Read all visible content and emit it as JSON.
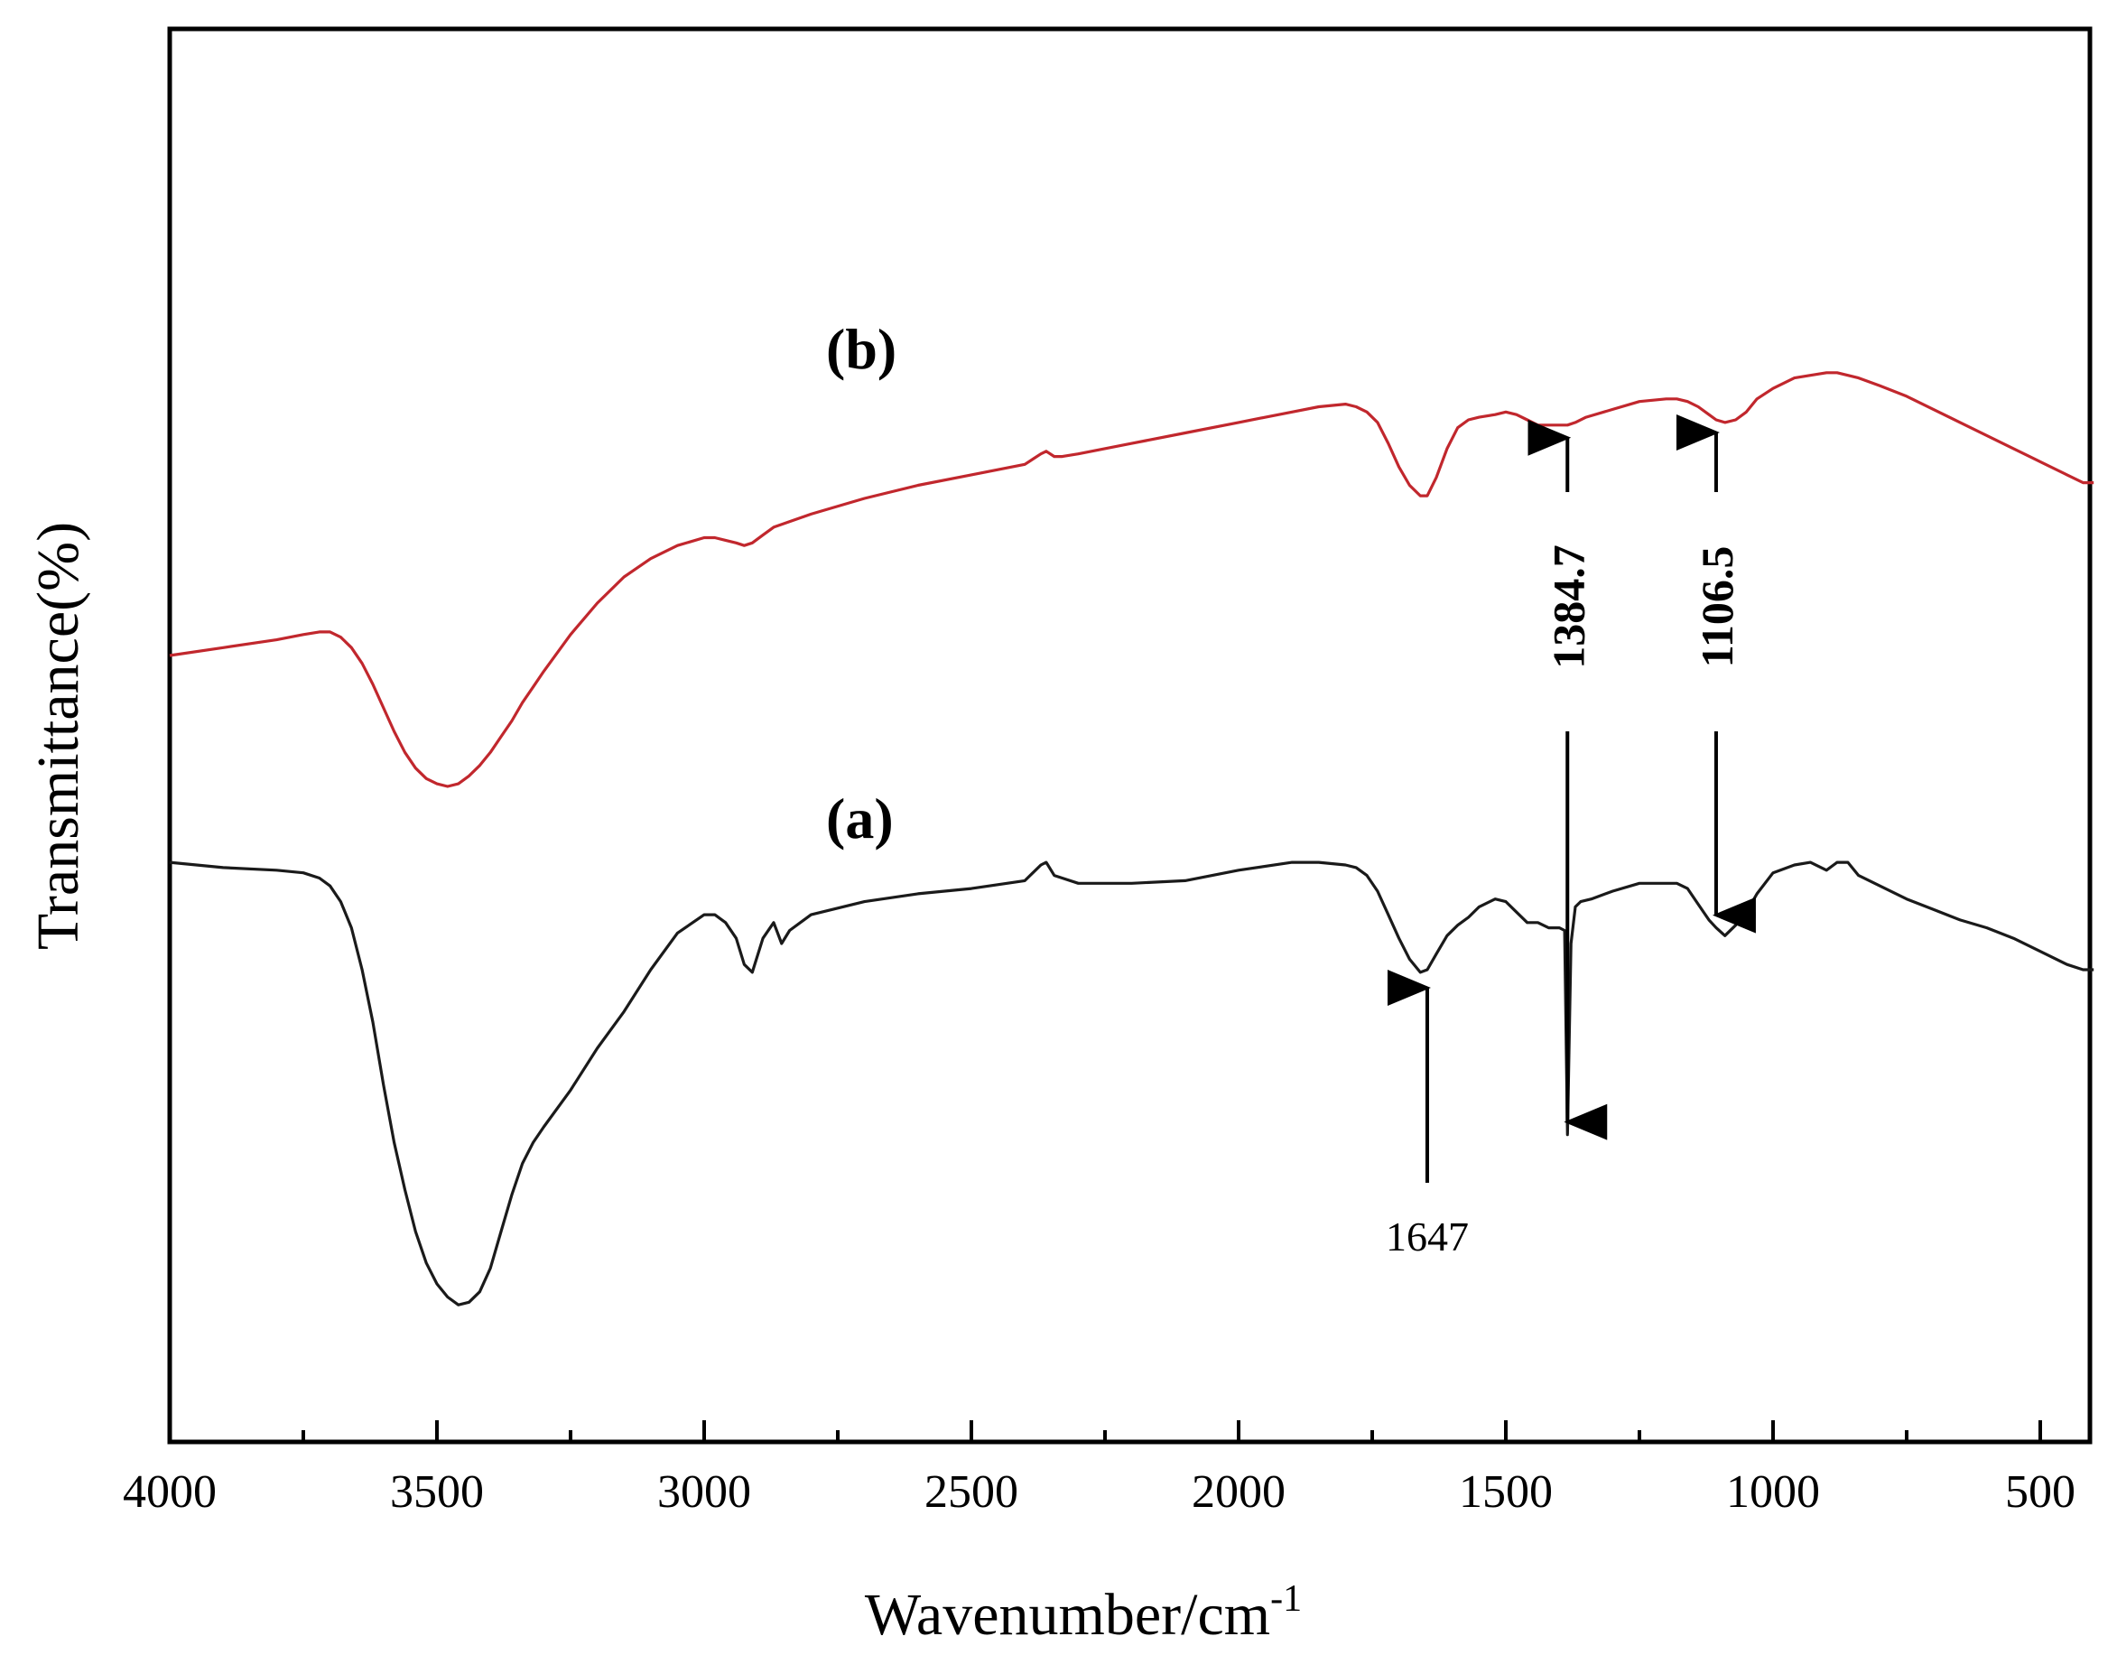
{
  "chart_data": {
    "type": "line",
    "title": "",
    "xlabel": "Wavenumber/cm",
    "xlabel_superscript": "-1",
    "ylabel": "Transmittance(%)",
    "xlim": [
      4000,
      400
    ],
    "ylim": [
      0,
      100
    ],
    "x_ticks": [
      4000,
      3500,
      3000,
      2500,
      2000,
      1500,
      1000,
      500
    ],
    "x_tick_labels": [
      "4000",
      "3500",
      "3000",
      "2500",
      "2000",
      "1500",
      "1000",
      "500"
    ],
    "y_ticks_shown": false,
    "grid": false,
    "series": [
      {
        "name": "(a)",
        "label": "(a)",
        "color": "#1a1a1a",
        "x": [
          4000,
          3900,
          3800,
          3750,
          3720,
          3700,
          3680,
          3660,
          3640,
          3620,
          3600,
          3580,
          3560,
          3540,
          3520,
          3500,
          3480,
          3460,
          3440,
          3420,
          3400,
          3380,
          3360,
          3340,
          3320,
          3300,
          3250,
          3200,
          3150,
          3100,
          3050,
          3000,
          2980,
          2960,
          2940,
          2925,
          2910,
          2890,
          2870,
          2855,
          2840,
          2800,
          2700,
          2600,
          2500,
          2400,
          2370,
          2360,
          2345,
          2330,
          2300,
          2250,
          2200,
          2100,
          2000,
          1900,
          1850,
          1800,
          1780,
          1760,
          1740,
          1720,
          1700,
          1680,
          1660,
          1647,
          1630,
          1610,
          1590,
          1570,
          1550,
          1520,
          1500,
          1480,
          1460,
          1440,
          1420,
          1400,
          1390,
          1384.7,
          1378,
          1370,
          1360,
          1340,
          1300,
          1250,
          1200,
          1180,
          1160,
          1140,
          1120,
          1106.5,
          1090,
          1070,
          1050,
          1030,
          1000,
          960,
          930,
          900,
          880,
          860,
          840,
          800,
          750,
          700,
          650,
          600,
          550,
          500,
          450,
          420,
          400
        ],
        "y": [
          90.5,
          89.5,
          89.0,
          88.5,
          87.5,
          86.0,
          83.0,
          78.0,
          70.0,
          60.0,
          48.0,
          37.0,
          28.0,
          20.0,
          14.0,
          10.0,
          7.5,
          6.0,
          6.5,
          8.5,
          13.0,
          20.0,
          27.0,
          33.0,
          37.0,
          40.0,
          47.0,
          55.0,
          62.0,
          70.0,
          77.0,
          80.5,
          80.5,
          79.0,
          76.0,
          71.0,
          69.5,
          76.0,
          79.0,
          75.0,
          77.5,
          80.5,
          83.0,
          84.5,
          85.5,
          87.0,
          90.0,
          90.5,
          88.0,
          87.5,
          86.5,
          86.5,
          86.5,
          87.0,
          89.0,
          90.5,
          90.5,
          90.0,
          89.5,
          88.0,
          85.0,
          80.5,
          76.0,
          72.0,
          69.5,
          70.0,
          73.0,
          76.5,
          78.5,
          80.0,
          82.0,
          83.5,
          83.0,
          81.0,
          79.0,
          79.0,
          78.0,
          78.0,
          77.5,
          38.5,
          75.0,
          82.0,
          83.0,
          83.5,
          85.0,
          86.5,
          86.5,
          86.5,
          85.5,
          82.5,
          79.5,
          78.0,
          76.5,
          78.5,
          81.0,
          84.5,
          88.5,
          90.0,
          90.5,
          89.0,
          90.5,
          90.5,
          88.0,
          86.0,
          83.5,
          81.5,
          79.5,
          78.0,
          76.0,
          73.5,
          71.0,
          70.0,
          70.0
        ]
      },
      {
        "name": "(b)",
        "label": "(b)",
        "color": "#c1272d",
        "x": [
          4000,
          3900,
          3800,
          3750,
          3720,
          3700,
          3680,
          3660,
          3640,
          3620,
          3600,
          3580,
          3560,
          3540,
          3520,
          3500,
          3480,
          3460,
          3440,
          3420,
          3400,
          3380,
          3360,
          3340,
          3320,
          3300,
          3250,
          3200,
          3150,
          3100,
          3050,
          3000,
          2980,
          2960,
          2940,
          2925,
          2910,
          2890,
          2870,
          2800,
          2700,
          2600,
          2500,
          2400,
          2370,
          2360,
          2345,
          2330,
          2300,
          2200,
          2100,
          2000,
          1900,
          1850,
          1800,
          1780,
          1760,
          1740,
          1720,
          1700,
          1680,
          1660,
          1647,
          1630,
          1610,
          1590,
          1570,
          1550,
          1520,
          1500,
          1480,
          1460,
          1440,
          1420,
          1400,
          1384.7,
          1370,
          1350,
          1300,
          1250,
          1200,
          1180,
          1160,
          1140,
          1120,
          1106.5,
          1090,
          1070,
          1050,
          1030,
          1000,
          960,
          930,
          900,
          880,
          860,
          840,
          800,
          750,
          700,
          650,
          600,
          550,
          500,
          450,
          420,
          400
        ],
        "y": [
          130.0,
          131.5,
          133.0,
          134.0,
          134.5,
          134.5,
          133.5,
          131.5,
          128.5,
          124.5,
          120.0,
          115.5,
          111.5,
          108.5,
          106.5,
          105.5,
          105.0,
          105.5,
          107.0,
          109.0,
          111.5,
          114.5,
          117.5,
          121.0,
          124.0,
          127.0,
          134.0,
          140.0,
          145.0,
          148.5,
          151.0,
          152.5,
          152.5,
          152.0,
          151.5,
          151.0,
          151.5,
          153.0,
          154.5,
          157.0,
          160.0,
          162.5,
          164.5,
          166.5,
          168.5,
          169.0,
          168.0,
          168.0,
          168.5,
          170.5,
          172.5,
          174.5,
          176.5,
          177.5,
          178.0,
          177.5,
          176.5,
          174.5,
          170.5,
          166.0,
          162.5,
          160.5,
          160.5,
          164.0,
          169.5,
          173.5,
          175.0,
          175.5,
          176.0,
          176.5,
          176.0,
          175.0,
          174.0,
          174.0,
          174.0,
          174.0,
          174.5,
          175.5,
          177.0,
          178.5,
          179.0,
          179.0,
          178.5,
          177.5,
          176.0,
          175.0,
          174.5,
          175.0,
          176.5,
          179.0,
          181.0,
          183.0,
          183.5,
          184.0,
          184.0,
          183.5,
          183.0,
          181.5,
          179.5,
          177.0,
          174.5,
          172.0,
          169.5,
          167.0,
          164.5,
          163.0,
          163.0
        ]
      }
    ],
    "annotations": [
      {
        "text": "1647",
        "x": 1647,
        "series": "(a)",
        "arrow": "up",
        "bold": false
      },
      {
        "text": "1384.7",
        "x": 1384.7,
        "series": "both",
        "arrow": "double",
        "bold": true
      },
      {
        "text": "1106.5",
        "x": 1106.5,
        "series": "both",
        "arrow": "double",
        "bold": true
      }
    ]
  }
}
